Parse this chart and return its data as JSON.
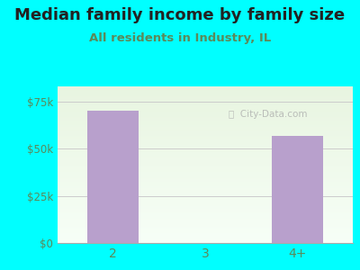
{
  "title": "Median family income by family size",
  "subtitle": "All residents in Industry, IL",
  "categories": [
    "2",
    "3",
    "4+"
  ],
  "values": [
    70000,
    0,
    57000
  ],
  "bar_color": "#b8a0cc",
  "ylim": [
    0,
    83000
  ],
  "yticks": [
    0,
    25000,
    50000,
    75000
  ],
  "ytick_labels": [
    "$0",
    "$25k",
    "$50k",
    "$75k"
  ],
  "background_outer": "#00ffff",
  "background_inner_top": "#e8f5e0",
  "background_inner_bottom": "#f8fff8",
  "title_color": "#222222",
  "subtitle_color": "#5a8a5a",
  "axis_color": "#aaaaaa",
  "grid_color": "#cccccc",
  "title_fontsize": 13,
  "subtitle_fontsize": 9.5,
  "tick_label_color": "#5a8a5a"
}
